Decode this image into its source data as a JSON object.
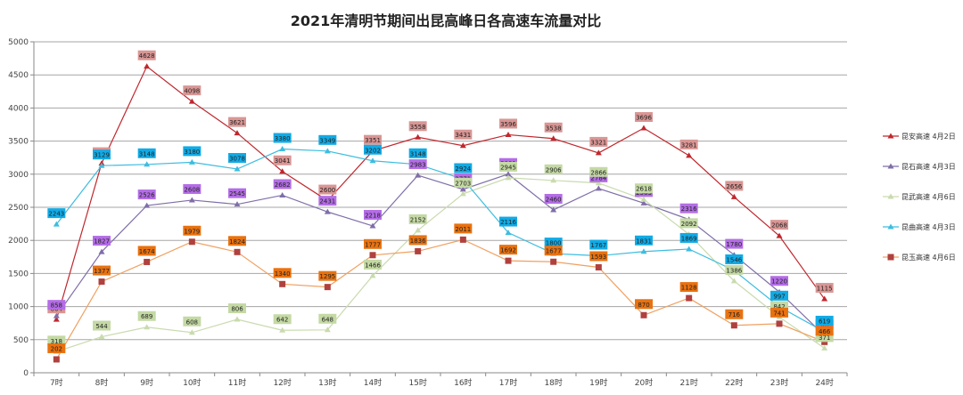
{
  "chart_data": {
    "type": "line",
    "title": "2021年清明节期间出昆高峰日各高速车流量对比",
    "xlabel": "",
    "ylabel": "",
    "ylim": [
      0,
      5000
    ],
    "yticks": [
      0,
      500,
      1000,
      1500,
      2000,
      2500,
      3000,
      3500,
      4000,
      4500,
      5000
    ],
    "grid": true,
    "legend_position": "right",
    "categories": [
      "7时",
      "8时",
      "9时",
      "10时",
      "11时",
      "12时",
      "13时",
      "14时",
      "15时",
      "16时",
      "17时",
      "18时",
      "19时",
      "20时",
      "21时",
      "22时",
      "23时",
      "24时"
    ],
    "series": [
      {
        "name": "昆安高速 4月2日",
        "marker": "triangle",
        "color": "#c0272d",
        "label_bg": "#d99694",
        "values": [
          804,
          3164,
          4628,
          4098,
          3621,
          3041,
          2600,
          3351,
          3558,
          3431,
          3596,
          3538,
          3321,
          3696,
          3281,
          2656,
          2068,
          1115
        ]
      },
      {
        "name": "昆石高速 4月3日",
        "marker": "triangle",
        "color": "#7f6ea8",
        "label_bg": "#b46de6",
        "values": [
          858,
          1827,
          2526,
          2608,
          2545,
          2682,
          2431,
          2218,
          2983,
          2771,
          3001,
          2460,
          2784,
          2563,
          2316,
          1780,
          1220,
          562
        ]
      },
      {
        "name": "昆武高速 4月6日",
        "marker": "triangle",
        "color": "#c9dbae",
        "label_bg": "#c4d9a4",
        "values": [
          318,
          544,
          689,
          608,
          806,
          642,
          648,
          1466,
          2152,
          2703,
          2945,
          2906,
          2866,
          2618,
          2092,
          1386,
          842,
          371
        ]
      },
      {
        "name": "昆曲高速 4月3日",
        "marker": "triangle",
        "color": "#3dbde0",
        "label_bg": "#10abe6",
        "values": [
          2243,
          3129,
          3148,
          3180,
          3078,
          3380,
          3349,
          3202,
          3148,
          2924,
          2116,
          1800,
          1767,
          1831,
          1869,
          1546,
          997,
          619
        ]
      },
      {
        "name": "昆玉高速 4月6日",
        "marker": "square",
        "color": "#f0a060",
        "marker_color": "#b0413e",
        "label_bg": "#e87210",
        "values": [
          202,
          1377,
          1674,
          1979,
          1824,
          1340,
          1295,
          1777,
          1836,
          2011,
          1692,
          1677,
          1593,
          870,
          1128,
          716,
          741,
          466
        ]
      }
    ]
  }
}
